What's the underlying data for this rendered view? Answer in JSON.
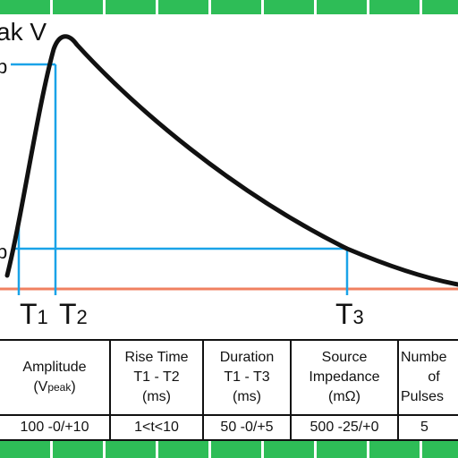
{
  "diagram": {
    "peak_label": "ak V",
    "level_upper_label": "b",
    "level_lower_label": "b",
    "markers": [
      {
        "letter": "T",
        "sub": "1"
      },
      {
        "letter": "T",
        "sub": "2"
      },
      {
        "letter": "T",
        "sub": "3"
      }
    ],
    "colors": {
      "curve": "#111111",
      "guides": "#1aa3e8",
      "baseline": "#f08060",
      "border": "#2ebd57"
    }
  },
  "table": {
    "headers": [
      {
        "lines": [
          "Amplitude",
          "(V",
          "peak",
          ")"
        ]
      },
      {
        "lines": [
          "Rise Time",
          "T1 - T2",
          "(ms)"
        ]
      },
      {
        "lines": [
          "Duration",
          "T1 - T3",
          "(ms)"
        ]
      },
      {
        "lines": [
          "Source",
          "Impedance",
          "(mΩ)"
        ]
      },
      {
        "lines": [
          "Numbe",
          "of",
          "Pulses"
        ]
      }
    ],
    "values": [
      "100 -0/+10",
      "1<t<10",
      "50 -0/+5",
      "500 -25/+0",
      "5"
    ]
  }
}
